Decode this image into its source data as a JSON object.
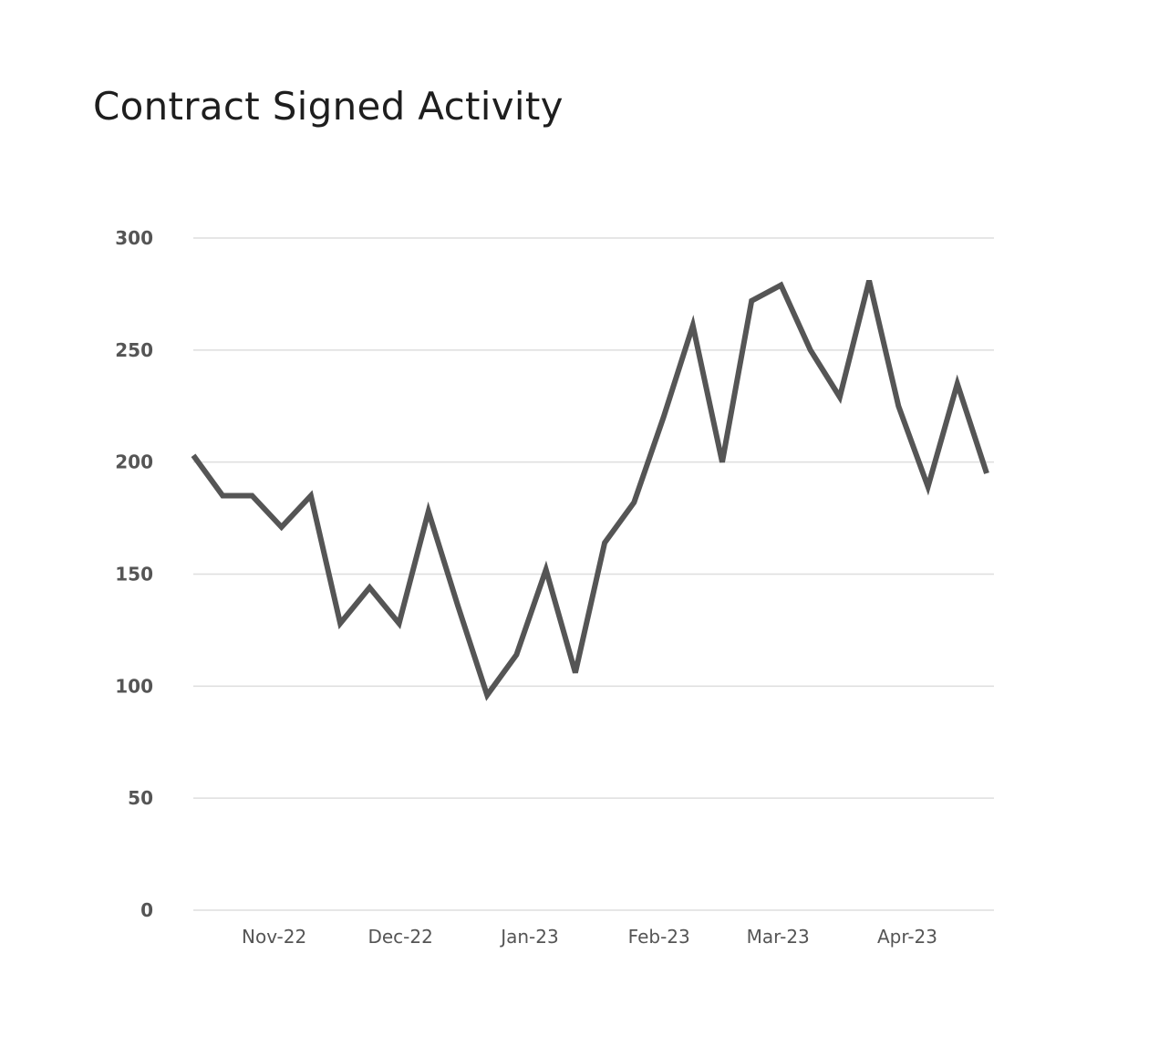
{
  "chart_data": {
    "type": "line",
    "title": "Contract Signed Activity",
    "xlabel": "",
    "ylabel": "",
    "ylim": [
      0,
      300
    ],
    "yticks": [
      0,
      50,
      100,
      150,
      200,
      250,
      300
    ],
    "xtick_labels": [
      {
        "label": "Nov-22",
        "index": 2.75
      },
      {
        "label": "Dec-22",
        "index": 7.05
      },
      {
        "label": "Jan-23",
        "index": 11.45
      },
      {
        "label": "Feb-23",
        "index": 15.85
      },
      {
        "label": "Mar-23",
        "index": 19.9
      },
      {
        "label": "Apr-23",
        "index": 24.3
      }
    ],
    "grid": true,
    "line_color": "#555555",
    "series": [
      {
        "values": [
          203,
          185,
          185,
          171,
          185,
          128,
          144,
          128,
          178,
          136,
          96,
          114,
          152,
          106,
          164,
          182,
          220,
          261,
          200,
          272,
          279,
          250,
          229,
          281,
          225,
          189,
          235,
          195
        ]
      }
    ]
  }
}
